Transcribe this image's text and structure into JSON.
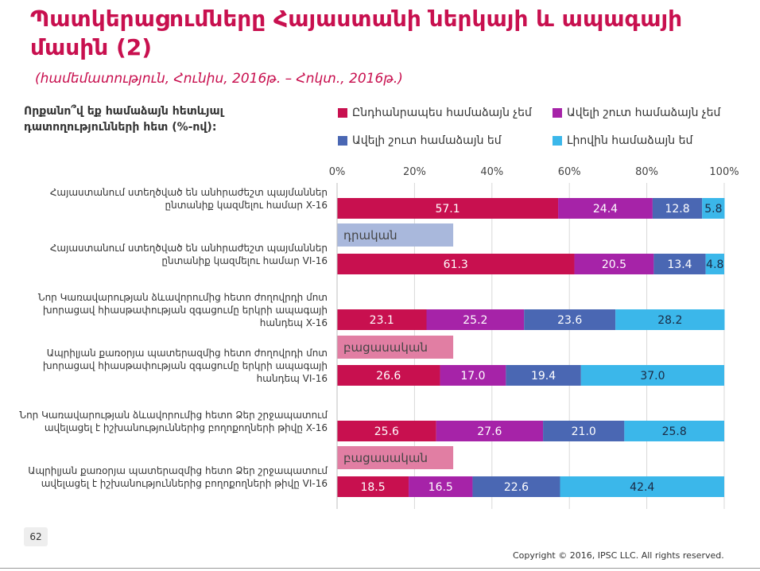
{
  "header": {
    "title": "Պատկերացումները Հայաստանի ներկայի և ապագայի մասին (2)",
    "subtitle": "(համեմատություն, Հունիս, 2016թ. – Հոկտ., 2016թ.)"
  },
  "question": "Որքանո՞վ եք համաձայն հետևյալ դատողությունների հետ (%-ով):",
  "footer": {
    "page_number": "62",
    "copyright": "Copyright © 2016, IPSC LLC. All rights reserved."
  },
  "colors": {
    "s1": "#c8104f",
    "s2": "#a623a8",
    "s3": "#4a67b3",
    "s4": "#3bb7ea",
    "positive_tag": "#a9b8dc",
    "negative_tag": "#e17ea3"
  },
  "chart_data": {
    "type": "bar",
    "orientation": "horizontal",
    "stacked": true,
    "xlim": [
      0,
      100
    ],
    "x_ticks": [
      "0%",
      "20%",
      "40%",
      "60%",
      "80%",
      "100%"
    ],
    "legend_position": "top",
    "series": [
      {
        "name": "Ընդհանրապես համաձայն չեմ",
        "color": "#c8104f"
      },
      {
        "name": "Ավելի շուտ համաձայն չեմ",
        "color": "#a623a8"
      },
      {
        "name": "Ավելի շուտ համաձայն եմ",
        "color": "#4a67b3"
      },
      {
        "name": "Լիովին համաձայն եմ",
        "color": "#3bb7ea"
      }
    ],
    "categories": [
      "Հայաստանում ստեղծված են անհրաժեշտ պայմաններ ընտանիք կազմելու համար X-16",
      "Հայաստանում ստեղծված են անհրաժեշտ պայմաններ ընտանիք կազմելու համար VI-16",
      "Նոր Կառավարության ձևավորումից հետո ժողովրդի մոտ խորացավ հիասթափության զգացումը երկրի ապագայի հանդեպ X-16",
      "Ապրիլյան քառօրյա պատերազմից հետո ժողովրդի մոտ խորացավ հիասթափության զգացումը երկրի ապագայի հանդեպ VI-16",
      "Նոր Կառավարության ձևավորումից հետո Ձեր շրջապատում ավելացել է իշխանություններից բողոքողների թիվը X-16",
      "Ապրիլյան քառօրյա պատերազմից հետո Ձեր շրջապատում ավելացել է իշխանություններից բողոքողների թիվը VI-16"
    ],
    "values": [
      [
        57.1,
        24.4,
        12.8,
        5.8
      ],
      [
        61.3,
        20.5,
        13.4,
        4.8
      ],
      [
        23.1,
        25.2,
        23.6,
        28.2
      ],
      [
        26.6,
        17.0,
        19.4,
        37.0
      ],
      [
        25.6,
        27.6,
        21.0,
        25.8
      ],
      [
        18.5,
        16.5,
        22.6,
        42.4
      ]
    ],
    "value_labels": [
      [
        "57.1",
        "24.4",
        "12.8",
        "5.8"
      ],
      [
        "61.3",
        "20.5",
        "13.4",
        "4.8"
      ],
      [
        "23.1",
        "25.2",
        "23.6",
        "28.2"
      ],
      [
        "26.6",
        "17.0",
        "19.4",
        "37.0"
      ],
      [
        "25.6",
        "27.6",
        "21.0",
        "25.8"
      ],
      [
        "18.5",
        "16.5",
        "22.6",
        "42.4"
      ]
    ],
    "annotations": [
      {
        "text": "դրական",
        "kind": "positive",
        "after_category": 0,
        "value": 30
      },
      {
        "text": "բացասական",
        "kind": "negative",
        "after_category": 2,
        "value": 30
      },
      {
        "text": "բացասական",
        "kind": "negative",
        "after_category": 4,
        "value": 30
      }
    ]
  }
}
